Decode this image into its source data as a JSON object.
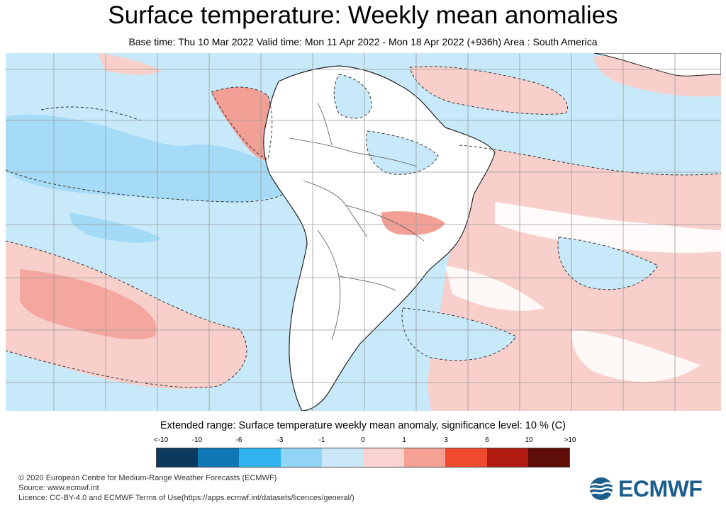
{
  "header": {
    "title": "Surface temperature: Weekly mean anomalies",
    "subtitle": "Base time: Thu 10 Mar 2022 Valid time: Mon 11 Apr 2022 - Mon 18 Apr 2022 (+936h) Area : South America"
  },
  "legend": {
    "title": "Extended range: Surface temperature weekly mean anomaly, significance level: 10 % (C)",
    "ticks": [
      "<-10",
      "-10",
      "-6",
      "-3",
      "-1",
      "0",
      "1",
      "3",
      "6",
      "10",
      ">10"
    ],
    "colors": [
      "#0b3a5e",
      "#0f78b4",
      "#2fb2ee",
      "#92d4f6",
      "#cbe8f9",
      "#f9d3d0",
      "#f4a093",
      "#f04a2f",
      "#b01a10",
      "#5e0d08"
    ]
  },
  "map_colors": {
    "ocean_blue": "#c8e9fa",
    "mid_blue": "#9fd8f5",
    "light_red": "#f8cfcb",
    "mid_red": "#f2a096",
    "land": "#ffffff",
    "coast": "#222222",
    "grid": "#9a9a9a"
  },
  "footer": {
    "line1": "© 2020 European Centre for Medium-Range Weather Forecasts (ECMWF)",
    "line2": "Source: www.ecmwf.int",
    "line3": "Licence: CC-BY-4.0 and ECMWF Terms of Use(https://apps.ecmwf.int/datasets/licences/general/)"
  },
  "logo": {
    "text": "ECMWF",
    "color": "#1d5d8c"
  }
}
